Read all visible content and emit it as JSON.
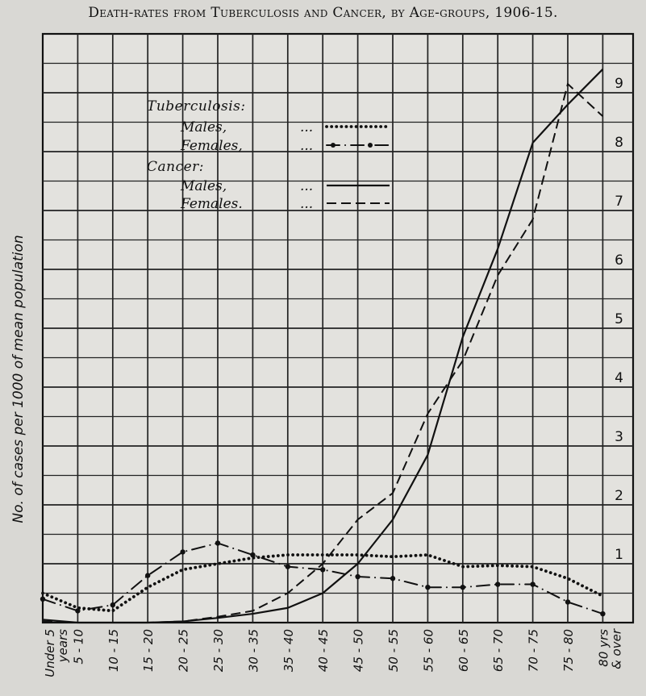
{
  "chart_data": {
    "type": "line",
    "title": "Death-rates from Tuberculosis and Cancer, by Age-groups, 1906-15.",
    "ylabel": "No. of cases per 1000 of mean population",
    "xlabel": "",
    "ylim": [
      0,
      10
    ],
    "yticks": [
      1,
      2,
      3,
      4,
      5,
      6,
      7,
      8,
      9
    ],
    "grid": true,
    "legend_position": "top-left inside plot",
    "categories": [
      "Under 5 years",
      "5 - 10",
      "10 - 15",
      "15 - 20",
      "20 - 25",
      "25 - 30",
      "30 - 35",
      "35 - 40",
      "40 - 45",
      "45 - 50",
      "50 - 55",
      "55 - 60",
      "60 - 65",
      "65 - 70",
      "70 - 75",
      "75 - 80",
      "80 yrs & over"
    ],
    "legend_groups": [
      {
        "heading": "Tuberculosis:",
        "entries": [
          "Males,",
          "Females,"
        ]
      },
      {
        "heading": "Cancer:",
        "entries": [
          "Males,",
          "Females."
        ]
      }
    ],
    "legend_dots": "...",
    "series": [
      {
        "name": "Males,",
        "group": "Tuberculosis",
        "style": "dotted",
        "values": [
          0.5,
          0.25,
          0.2,
          0.6,
          0.9,
          1.0,
          1.1,
          1.15,
          1.15,
          1.15,
          1.12,
          1.15,
          0.95,
          0.97,
          0.95,
          0.75,
          0.45
        ]
      },
      {
        "name": "Females,",
        "group": "Tuberculosis",
        "style": "dash-dot",
        "values": [
          0.4,
          0.2,
          0.3,
          0.8,
          1.2,
          1.35,
          1.15,
          0.95,
          0.9,
          0.78,
          0.75,
          0.6,
          0.6,
          0.65,
          0.65,
          0.35,
          0.15
        ]
      },
      {
        "name": "Males,",
        "group": "Cancer",
        "style": "solid",
        "values": [
          0.05,
          0.0,
          0.0,
          0.0,
          0.02,
          0.08,
          0.15,
          0.25,
          0.5,
          1.0,
          1.75,
          2.85,
          4.85,
          6.35,
          8.15,
          8.8,
          9.4
        ]
      },
      {
        "name": "Females.",
        "group": "Cancer",
        "style": "dashed",
        "values": [
          0.02,
          0.0,
          0.0,
          0.0,
          0.02,
          0.1,
          0.2,
          0.5,
          1.0,
          1.75,
          2.2,
          3.55,
          4.45,
          5.9,
          6.85,
          9.15,
          8.6
        ]
      }
    ]
  }
}
